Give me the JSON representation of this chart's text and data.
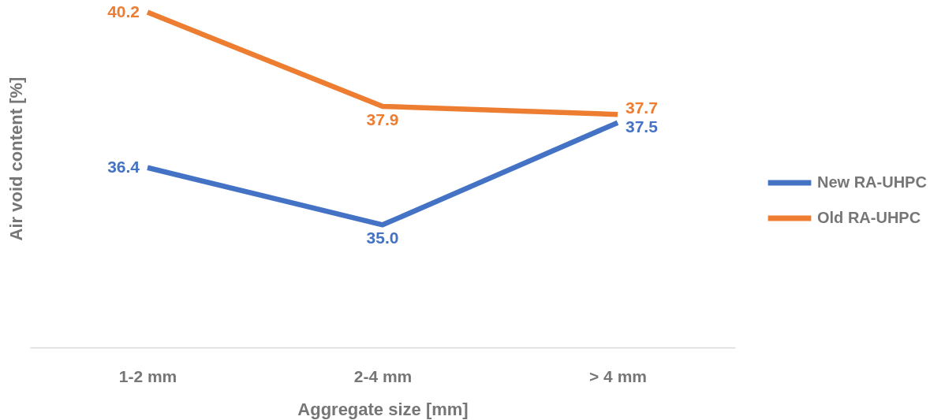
{
  "chart_data": {
    "type": "line",
    "xlabel": "Aggregate size [mm]",
    "ylabel": "Air void content [%]",
    "categories": [
      "1-2 mm",
      "2-4 mm",
      "> 4 mm"
    ],
    "series": [
      {
        "name": "New RA-UHPC",
        "color": "#4472c4",
        "values": [
          36.4,
          35.0,
          37.5
        ],
        "value_labels": [
          "36.4",
          "35.0",
          "37.5"
        ]
      },
      {
        "name": "Old RA-UHPC",
        "color": "#ed7d31",
        "values": [
          40.2,
          37.9,
          37.7
        ],
        "value_labels": [
          "40.2",
          "37.9",
          "37.7"
        ]
      }
    ],
    "ylim": [
      32,
      40.5
    ],
    "tick_labels": "x",
    "legend": "right",
    "line_style": "solid"
  }
}
